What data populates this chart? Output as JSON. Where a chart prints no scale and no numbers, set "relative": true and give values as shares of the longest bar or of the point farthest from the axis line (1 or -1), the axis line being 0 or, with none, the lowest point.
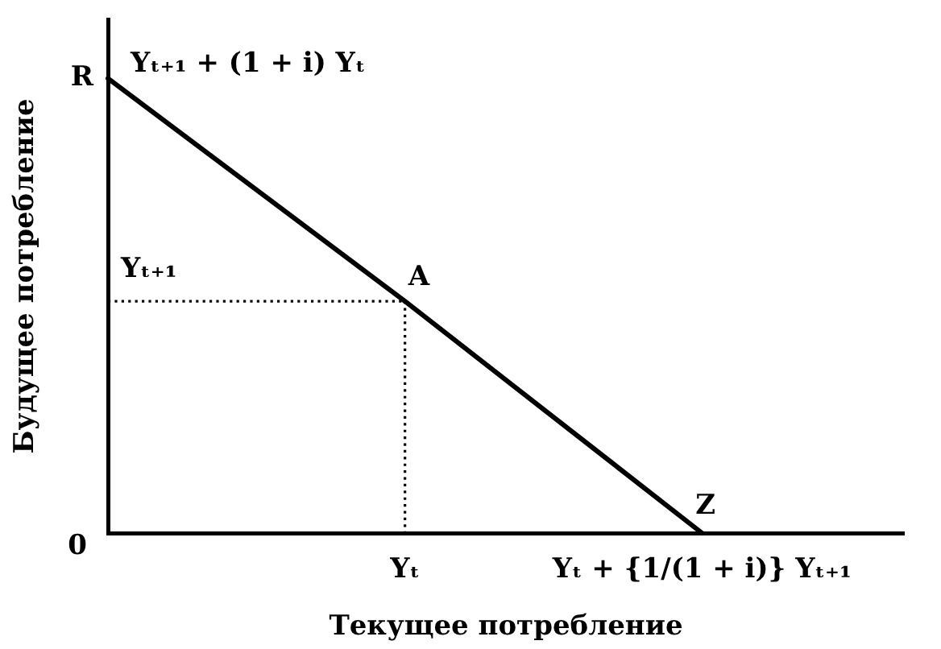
{
  "chart_data": {
    "type": "line",
    "xlabel": "Текущее потребление",
    "ylabel": "Будущее потребление",
    "relative": true,
    "categories": [
      null,
      "Yₜ",
      "Yₜ + {1/(1 + i)} Yₜ₊₁"
    ],
    "series": [
      {
        "color": "#000000",
        "values": [
          1,
          0.51,
          0
        ]
      },
      {
        "color": "#000000",
        "values": [
          0.51,
          0.51,
          null
        ],
        "line_style": "dotted"
      },
      {
        "color": "#000000",
        "x": [
          "Yₜ",
          "Yₜ"
        ],
        "values": [
          0.51,
          0
        ],
        "line_style": "dotted"
      }
    ],
    "annotations": [
      "R",
      "Yₜ₊₁ + (1 + i) Yₜ",
      {
        "text": "Yₜ₊₁",
        "y": 0.51
      },
      {
        "text": "A",
        "x": "Yₜ",
        "y": 0.51
      },
      {
        "text": "Z",
        "x": "Yₜ + {1/(1 + i)} Yₜ₊₁",
        "y": 0
      },
      "0"
    ]
  }
}
